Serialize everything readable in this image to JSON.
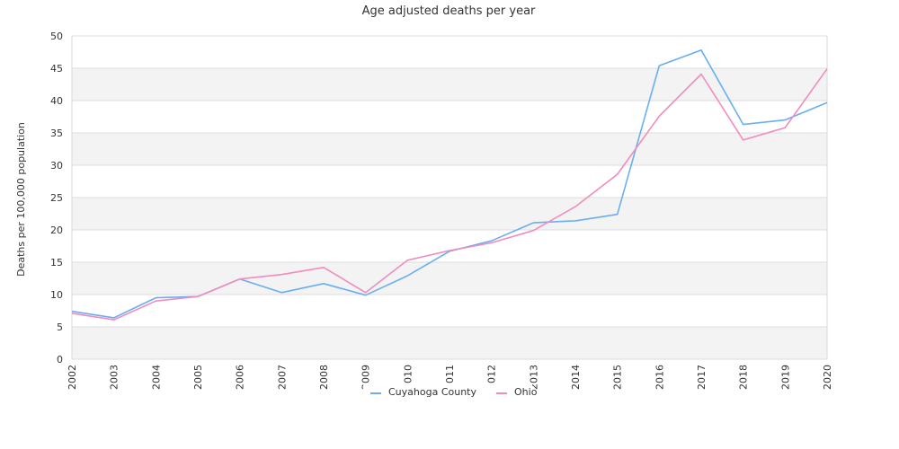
{
  "chart_data": {
    "type": "line",
    "title": "Age adjusted deaths per year",
    "xlabel": "",
    "ylabel": "Deaths per 100,000 population",
    "ylim": [
      0,
      50
    ],
    "yticks": [
      0,
      5,
      10,
      15,
      20,
      25,
      30,
      35,
      40,
      45,
      50
    ],
    "x": [
      "2002",
      "2003",
      "2004",
      "2005",
      "2006",
      "2007",
      "2008",
      "2009",
      "2010",
      "2011",
      "2012",
      "2013",
      "2014",
      "2015",
      "2016",
      "2017",
      "2018",
      "2019",
      "2020"
    ],
    "grid": true,
    "legend_position": "bottom-center",
    "series": [
      {
        "name": "Cuyahoga County",
        "color": "#6aaef0",
        "values": [
          7.4,
          6.4,
          9.5,
          9.7,
          12.4,
          10.3,
          11.7,
          9.9,
          12.9,
          16.7,
          18.3,
          21.1,
          21.4,
          22.4,
          45.4,
          47.8,
          36.3,
          37.0,
          39.7
        ]
      },
      {
        "name": "Ohio",
        "color": "#f08cbe",
        "values": [
          7.1,
          6.1,
          9.0,
          9.7,
          12.4,
          13.1,
          14.2,
          10.3,
          15.3,
          16.8,
          18.0,
          19.9,
          23.6,
          28.6,
          37.6,
          44.1,
          33.9,
          35.8,
          44.9
        ]
      }
    ]
  }
}
